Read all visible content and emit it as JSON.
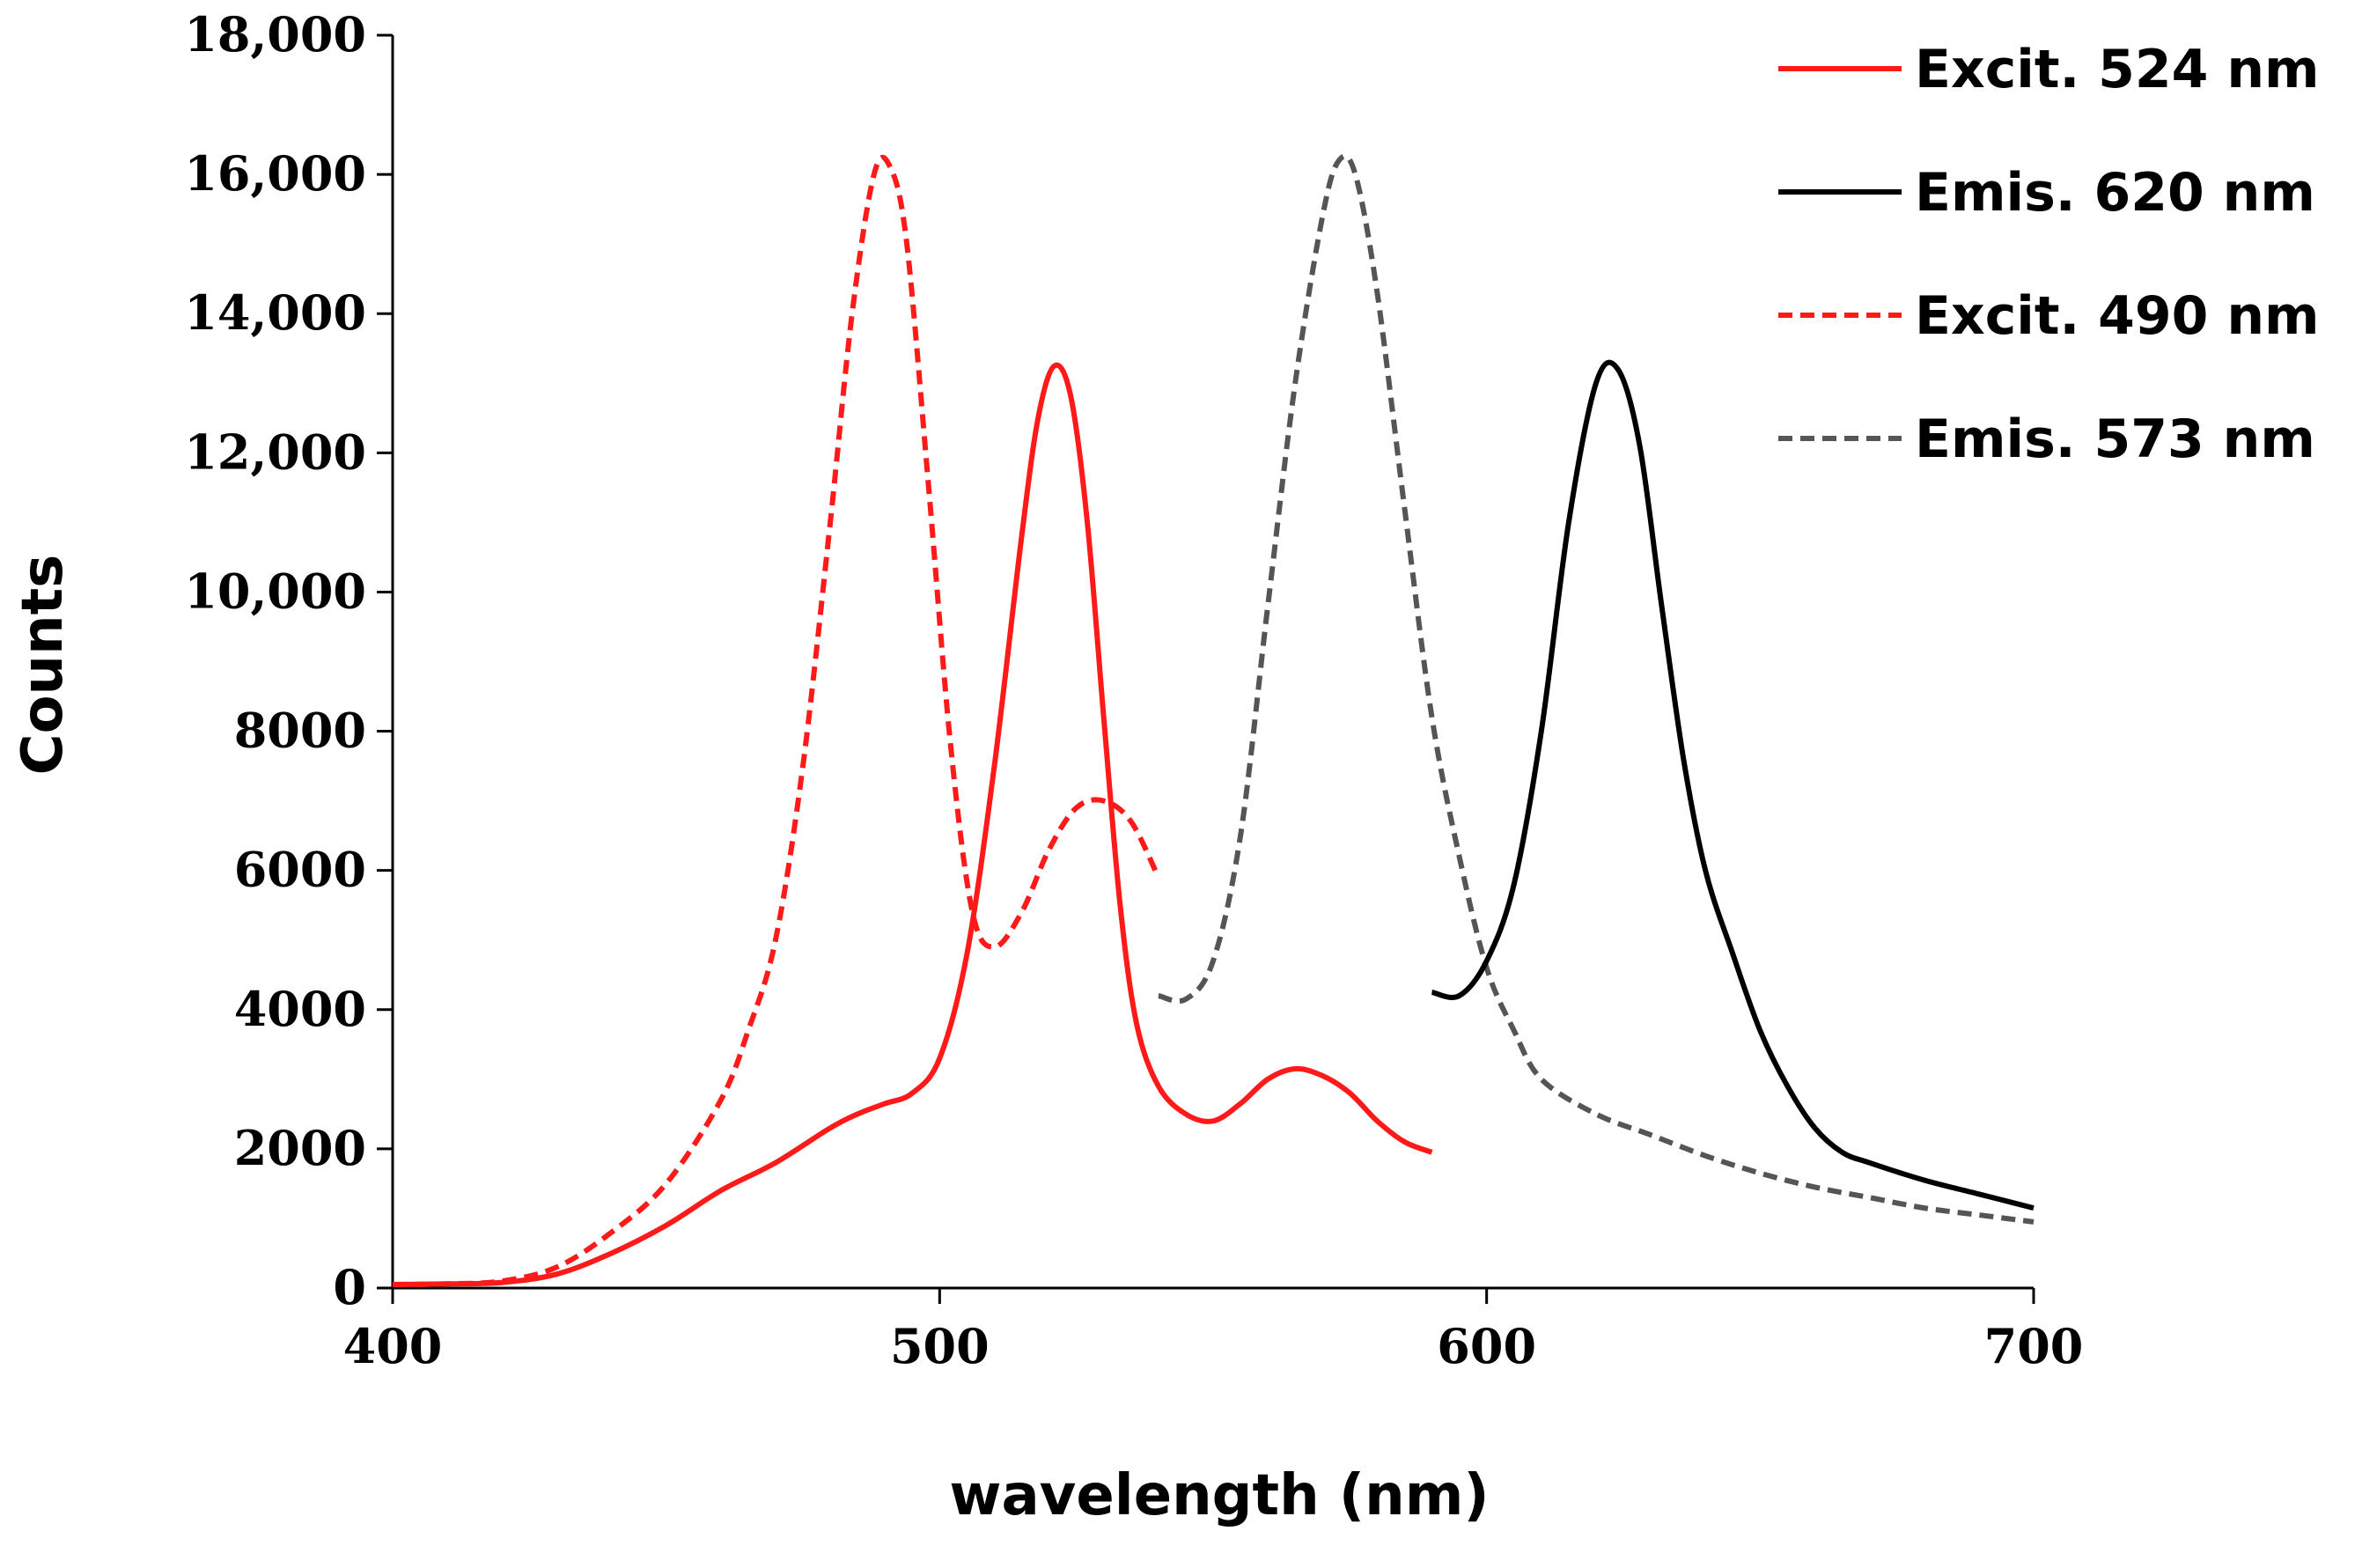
{
  "chart_data": {
    "type": "line",
    "title": "",
    "xlabel": "wavelength (nm)",
    "ylabel": "Counts",
    "xlim": [
      400,
      700
    ],
    "ylim": [
      0,
      18000
    ],
    "x_ticks": [
      400,
      500,
      600,
      700
    ],
    "x_tick_labels": [
      "400",
      "500",
      "600",
      "700"
    ],
    "y_ticks": [
      0,
      2000,
      4000,
      6000,
      8000,
      10000,
      12000,
      14000,
      16000,
      18000
    ],
    "y_tick_labels": [
      "0",
      "2000",
      "4000",
      "6000",
      "8000",
      "10,000",
      "12,000",
      "14,000",
      "16,000",
      "18,000"
    ],
    "grid": false,
    "legend_position": "top-right",
    "series": [
      {
        "name": "Excit. 524 nm",
        "color": "#ff1a1a",
        "dash": "solid",
        "x": [
          400,
          410,
          420,
          430,
          440,
          450,
          460,
          470,
          480,
          485,
          490,
          495,
          500,
          505,
          510,
          515,
          518,
          521,
          524,
          527,
          530,
          533,
          536,
          540,
          545,
          550,
          555,
          560,
          565,
          570,
          575,
          580,
          585,
          590
        ],
        "y": [
          50,
          60,
          80,
          200,
          500,
          900,
          1400,
          1800,
          2300,
          2500,
          2650,
          2800,
          3300,
          4800,
          7500,
          10800,
          12500,
          13250,
          12800,
          11000,
          8200,
          5500,
          3800,
          2900,
          2500,
          2400,
          2650,
          3000,
          3150,
          3050,
          2800,
          2400,
          2100,
          1950
        ]
      },
      {
        "name": "Emis. 620 nm",
        "color": "#000000",
        "dash": "solid",
        "x": [
          590,
          595,
          600,
          605,
          610,
          615,
          620,
          624,
          628,
          632,
          636,
          640,
          645,
          650,
          655,
          660,
          665,
          670,
          680,
          690,
          700
        ],
        "y": [
          4250,
          4200,
          4700,
          5800,
          8000,
          11000,
          13000,
          13200,
          12100,
          9800,
          7600,
          6000,
          4800,
          3700,
          2900,
          2300,
          1950,
          1800,
          1550,
          1350,
          1150
        ]
      },
      {
        "name": "Excit. 490 nm",
        "color": "#ff1a1a",
        "dash": "dashed",
        "x": [
          400,
          410,
          420,
          430,
          440,
          450,
          460,
          465,
          470,
          475,
          480,
          484,
          488,
          491,
          494,
          498,
          502,
          506,
          510,
          515,
          520,
          525,
          530,
          535,
          540
        ],
        "y": [
          50,
          60,
          100,
          300,
          800,
          1500,
          2700,
          3700,
          5000,
          7500,
          11000,
          14000,
          16000,
          16100,
          15000,
          11500,
          7800,
          5400,
          4900,
          5400,
          6300,
          6900,
          7000,
          6700,
          5900
        ]
      },
      {
        "name": "Emis. 573 nm",
        "color": "#555555",
        "dash": "dashed",
        "x": [
          540,
          545,
          550,
          555,
          560,
          565,
          570,
          573,
          576,
          580,
          585,
          590,
          595,
          600,
          605,
          610,
          620,
          630,
          640,
          650,
          660,
          670,
          680,
          690,
          700
        ],
        "y": [
          4200,
          4150,
          4700,
          6500,
          9800,
          13000,
          15400,
          16200,
          16000,
          14300,
          11200,
          8200,
          6200,
          4600,
          3700,
          3000,
          2500,
          2200,
          1900,
          1650,
          1450,
          1300,
          1150,
          1050,
          950
        ]
      }
    ]
  }
}
